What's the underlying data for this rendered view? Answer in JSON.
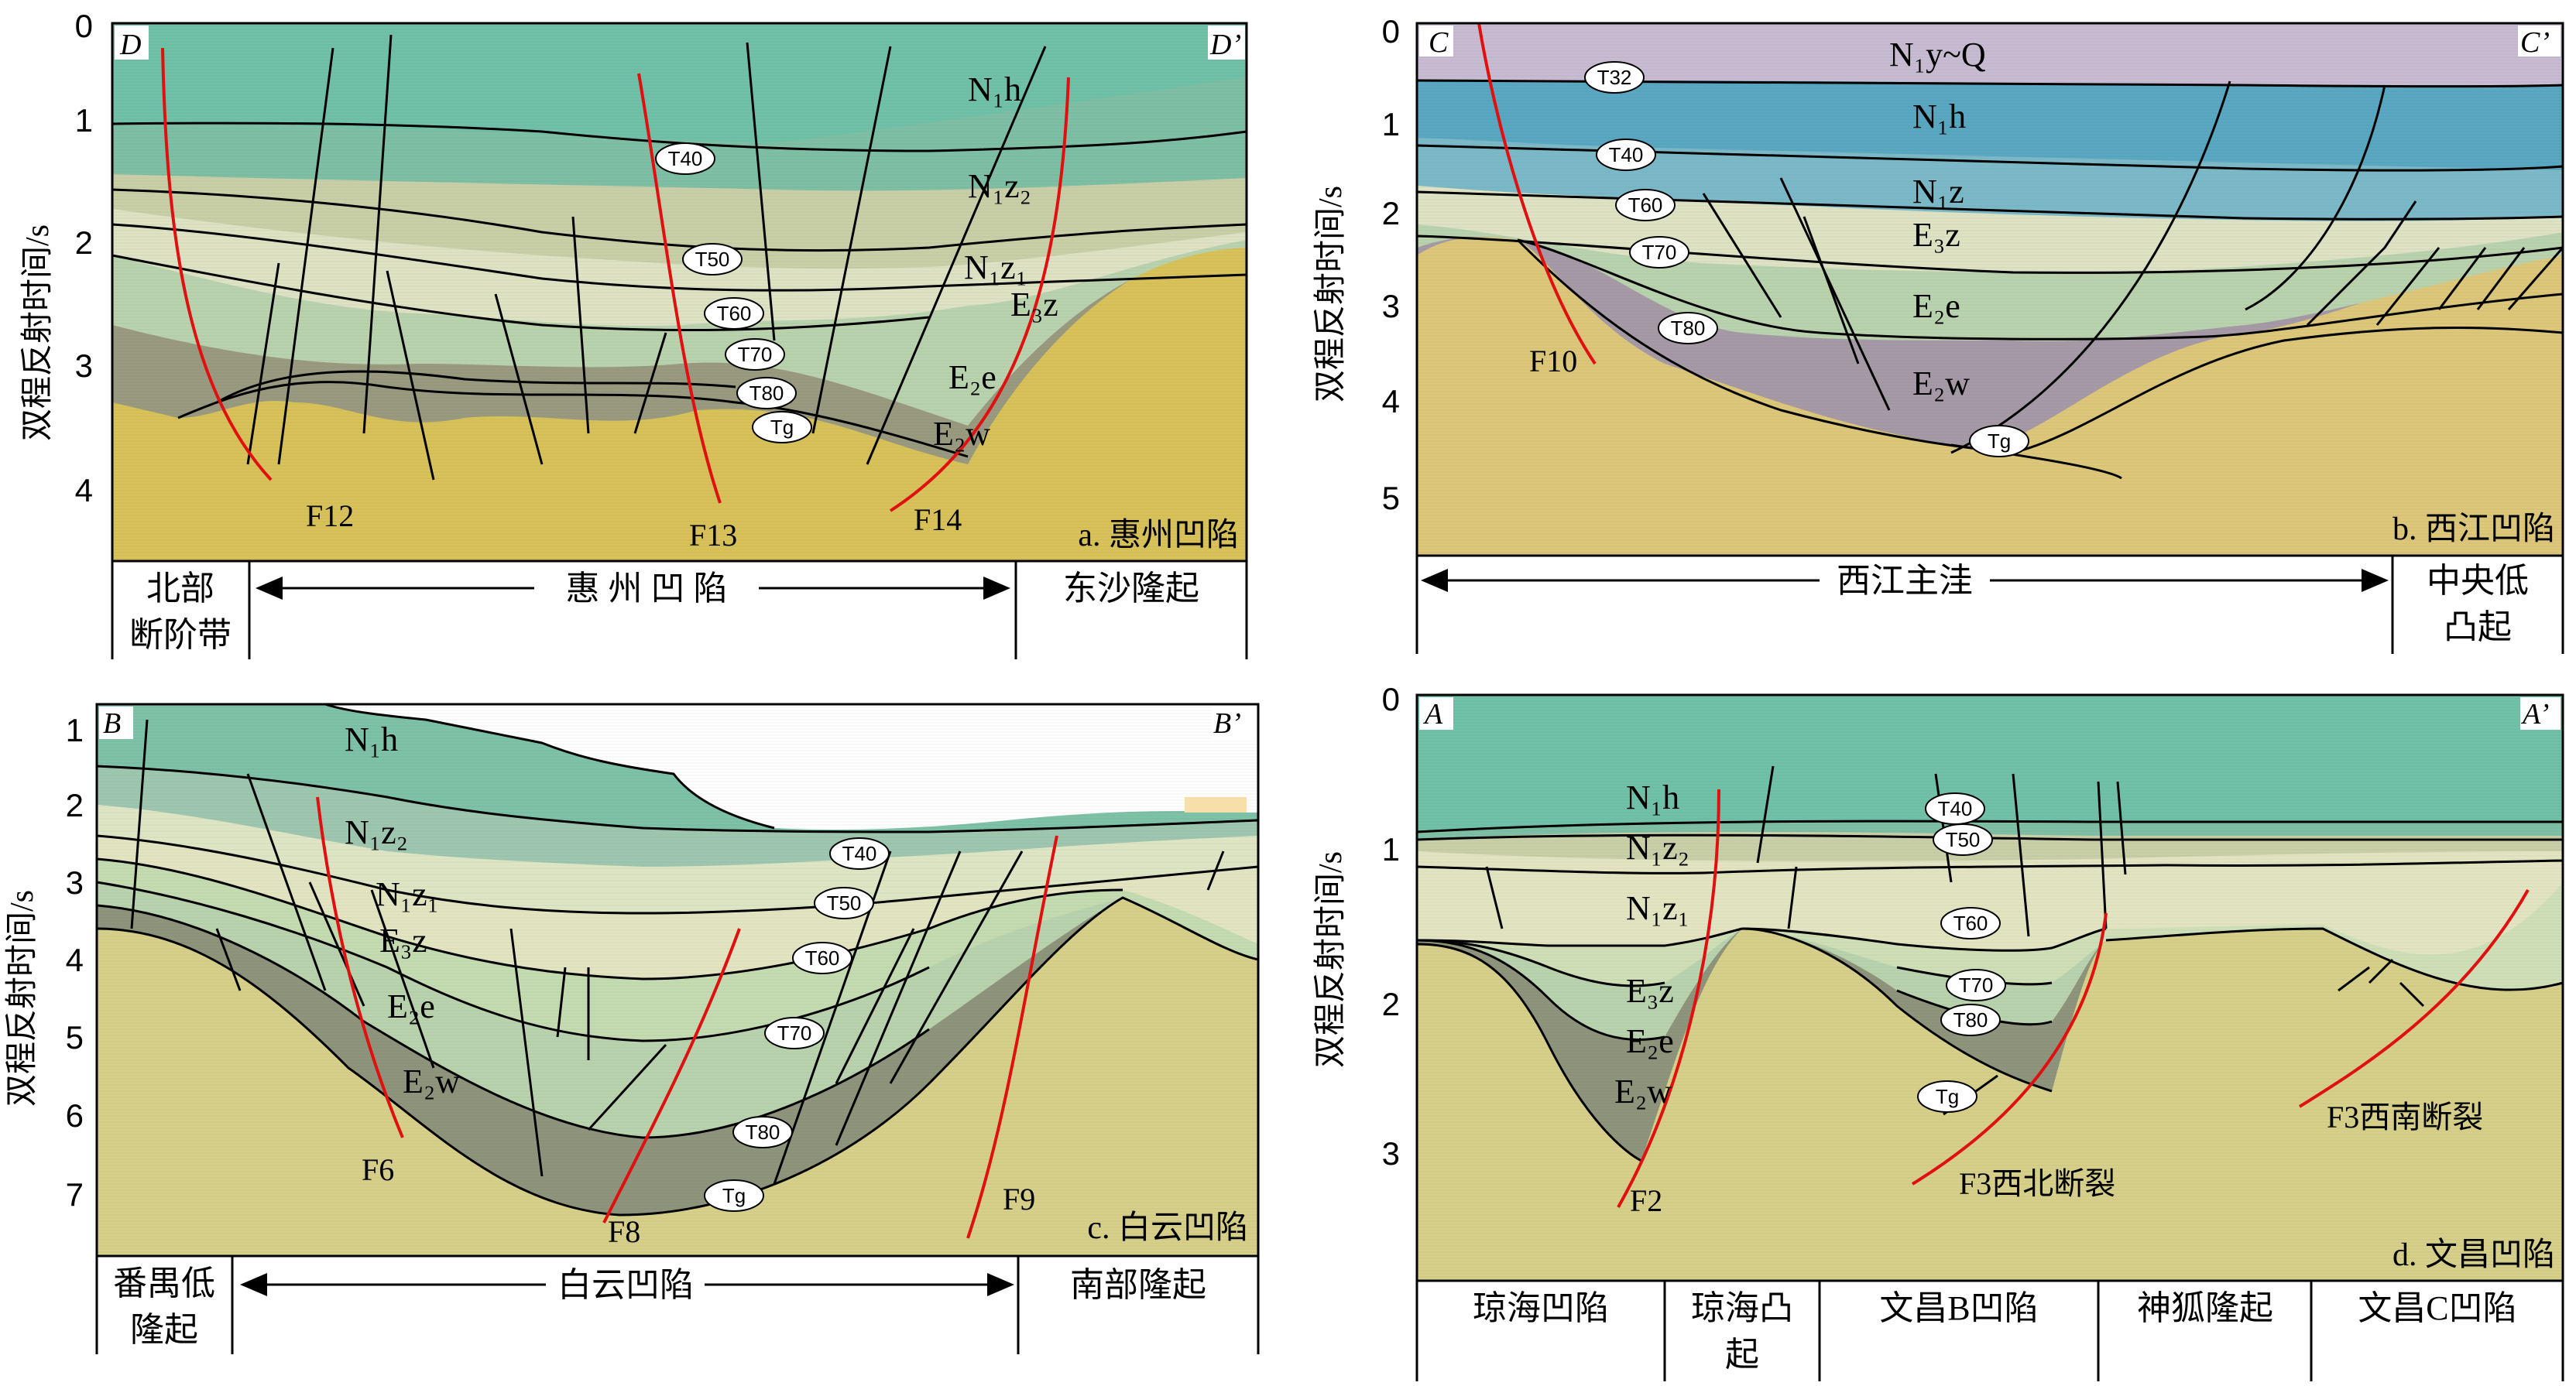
{
  "y_axis_label": "双程反射时间/s",
  "panels": [
    {
      "id": "D",
      "corner_left": "D",
      "corner_right": "D’",
      "caption": "a. 惠州凹陷",
      "ticks": [
        "0",
        "1",
        "2",
        "3",
        "4"
      ],
      "units": [
        {
          "text": "N₁h"
        },
        {
          "text": "N₁z₂"
        },
        {
          "text": "N₁z₁"
        },
        {
          "text": "E₃z"
        },
        {
          "text": "E₂e"
        },
        {
          "text": "E₂w"
        }
      ],
      "horizons": [
        "T40",
        "T50",
        "T60",
        "T70",
        "T80",
        "Tg"
      ],
      "faults": [
        "F12",
        "F13",
        "F14"
      ],
      "regions": [
        "北部\n断阶带",
        "惠 州 凹 陷",
        "东沙隆起"
      ]
    },
    {
      "id": "C",
      "corner_left": "C",
      "corner_right": "C’",
      "caption": "b. 西江凹陷",
      "ticks": [
        "0",
        "1",
        "2",
        "3",
        "4",
        "5"
      ],
      "units": [
        {
          "text": "N₁y~Q"
        },
        {
          "text": "N₁h"
        },
        {
          "text": "N₁z"
        },
        {
          "text": "E₃z"
        },
        {
          "text": "E₂e"
        },
        {
          "text": "E₂w"
        }
      ],
      "horizons": [
        "T32",
        "T40",
        "T60",
        "T70",
        "T80",
        "Tg"
      ],
      "faults": [
        "F10"
      ],
      "regions": [
        "西江主洼",
        "中央低\n凸起"
      ]
    },
    {
      "id": "B",
      "corner_left": "B",
      "corner_right": "B’",
      "caption": "c. 白云凹陷",
      "ticks": [
        "1",
        "2",
        "3",
        "4",
        "5",
        "6",
        "7"
      ],
      "units": [
        {
          "text": "N₁h"
        },
        {
          "text": "N₁z₂"
        },
        {
          "text": "N₁z₁"
        },
        {
          "text": "E₃z"
        },
        {
          "text": "E₂e"
        },
        {
          "text": "E₂w"
        }
      ],
      "horizons": [
        "T40",
        "T50",
        "T60",
        "T70",
        "T80",
        "Tg"
      ],
      "faults": [
        "F6",
        "F8",
        "F9"
      ],
      "regions": [
        "番禺低\n隆起",
        "白云凹陷",
        "南部隆起"
      ]
    },
    {
      "id": "A",
      "corner_left": "A",
      "corner_right": "A’",
      "caption": "d. 文昌凹陷",
      "ticks": [
        "0",
        "1",
        "2",
        "3"
      ],
      "units": [
        {
          "text": "N₁h"
        },
        {
          "text": "N₁z₂"
        },
        {
          "text": "N₁z₁"
        },
        {
          "text": "E₃z"
        },
        {
          "text": "E₂e"
        },
        {
          "text": "E₂w"
        }
      ],
      "horizons": [
        "T40",
        "T50",
        "T60",
        "T70",
        "T80",
        "Tg"
      ],
      "faults": [
        "F2",
        "F3西北断裂",
        "F3西南断裂"
      ],
      "regions": [
        "琼海凹陷",
        "琼海凸\n起",
        "文昌B凹陷",
        "神狐隆起",
        "文昌C凹陷"
      ]
    }
  ],
  "colors": {
    "basement": "#d9c25a",
    "deep": "#9a9a80",
    "E2e": "#b9d3ae",
    "E3z": "#dfe3c4",
    "N1z1": "#c9cfa7",
    "N1z2": "#7fbfa5",
    "N1h": "#71c1a8",
    "C_top": "#c7bcd2",
    "C_N1h": "#4ea6c0",
    "fault_major": "#e01010"
  }
}
